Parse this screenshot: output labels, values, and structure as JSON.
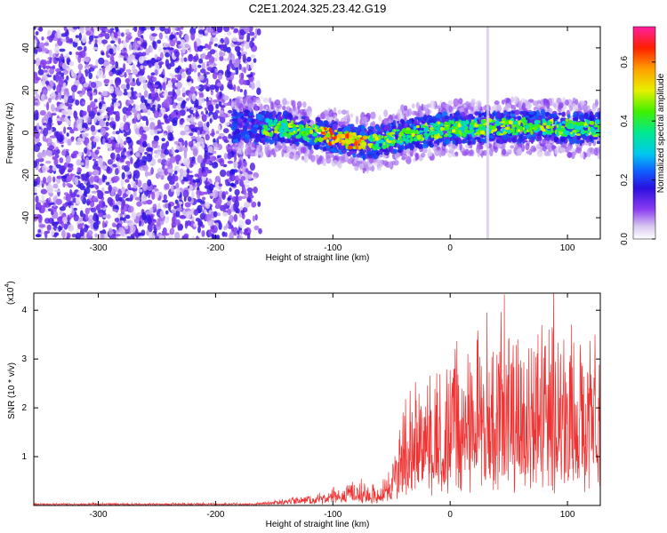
{
  "title": "C2E1.2024.325.23.42.G19",
  "chart_data": [
    {
      "type": "heatmap",
      "xlabel": "Height of straight line (km)",
      "ylabel": "Frequency (Hz)",
      "xlim": [
        -355,
        128
      ],
      "ylim": [
        -50,
        50
      ],
      "xticks": [
        -300,
        -200,
        -100,
        0,
        100
      ],
      "yticks": [
        -40,
        -20,
        0,
        20,
        40
      ],
      "colorbar": {
        "label": "Normalized spectral amplitude",
        "range": [
          0,
          0.72
        ],
        "ticks": [
          "0.0",
          "0.2",
          "0.4",
          "0.6"
        ],
        "tick_values": [
          0.0,
          0.2,
          0.4,
          0.6
        ]
      },
      "regions": [
        {
          "x_range": [
            -355,
            -160
          ],
          "pattern": "broadband noise",
          "amplitude_range": [
            0.0,
            0.1
          ]
        },
        {
          "x_range": [
            -185,
            128
          ],
          "pattern": "narrow band near 0 Hz",
          "band_center_hz": [
            3,
            2,
            -2,
            -5,
            0,
            2,
            3,
            2
          ],
          "band_center_x": [
            -180,
            -140,
            -100,
            -70,
            -30,
            0,
            60,
            128
          ],
          "amplitude_range": [
            0.0,
            0.7
          ]
        }
      ],
      "colors": {
        "low": "#e0d0f5",
        "mid": "#6a1ee0",
        "high": "#ff1a1a"
      }
    },
    {
      "type": "line",
      "xlabel": "Height of straight line (km)",
      "ylabel": "SNR (10 * v/v)",
      "y_multiplier": "(x10",
      "y_multiplier_exp": "4",
      "y_multiplier_close": ")",
      "xlim": [
        -355,
        128
      ],
      "ylim": [
        0,
        4.35
      ],
      "xticks": [
        -300,
        -200,
        -100,
        0,
        100
      ],
      "yticks": [
        1,
        2,
        3,
        4
      ],
      "series": [
        {
          "color": "#ee3333",
          "x": [
            -355,
            -170,
            -160,
            -140,
            -120,
            -100,
            -80,
            -60,
            -50,
            -45,
            -40,
            -30,
            -20,
            0,
            20,
            40,
            60,
            80,
            100,
            128
          ],
          "y_baseline": [
            0.03,
            0.03,
            0.04,
            0.06,
            0.09,
            0.12,
            0.14,
            0.12,
            0.3,
            0.45,
            0.6,
            0.75,
            0.9,
            1.0,
            1.1,
            1.15,
            1.2,
            1.2,
            1.15,
            1.1
          ],
          "y_peak": [
            0.05,
            0.05,
            0.08,
            0.15,
            0.25,
            0.35,
            0.55,
            0.45,
            1.0,
            1.5,
            2.2,
            2.5,
            2.8,
            3.2,
            3.8,
            4.2,
            4.1,
            4.35,
            4.0,
            3.5
          ]
        }
      ]
    }
  ]
}
